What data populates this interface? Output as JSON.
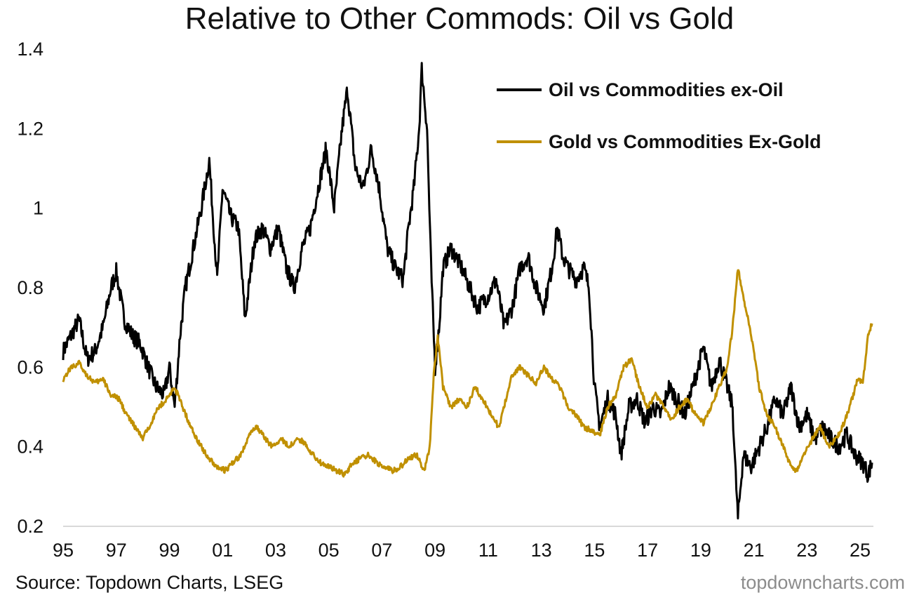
{
  "title": "Relative to Other Commods: Oil vs Gold",
  "source": "Source: Topdown Charts, LSEG",
  "brand": "topdowncharts.com",
  "colors": {
    "oil": "#000000",
    "gold": "#c09000",
    "axis": "#d9d9d9"
  },
  "chart_data": {
    "type": "line",
    "title": "Relative to Other Commods: Oil vs Gold",
    "xlabel": "",
    "ylabel": "",
    "xlim": [
      1995,
      2025.5
    ],
    "ylim": [
      0.2,
      1.4
    ],
    "grid": false,
    "legend": "top-right",
    "x_tick_labels": [
      "95",
      "97",
      "99",
      "01",
      "03",
      "05",
      "07",
      "09",
      "11",
      "13",
      "15",
      "17",
      "19",
      "21",
      "23",
      "25"
    ],
    "y_tick_labels": [
      "0.2",
      "0.4",
      "0.6",
      "0.8",
      "1",
      "1.2",
      "1.4"
    ],
    "series": [
      {
        "name": "Oil vs Commodities ex-Oil",
        "color": "#000000",
        "x": [
          1995.0,
          1995.3,
          1995.6,
          1995.9,
          1996.2,
          1996.5,
          1996.8,
          1997.0,
          1997.3,
          1997.6,
          1997.9,
          1998.2,
          1998.5,
          1998.8,
          1999.0,
          1999.2,
          1999.4,
          1999.6,
          1999.9,
          2000.2,
          2000.5,
          2000.8,
          2001.0,
          2001.3,
          2001.6,
          2001.85,
          2002.2,
          2002.5,
          2002.8,
          2003.1,
          2003.4,
          2003.7,
          2004.0,
          2004.3,
          2004.6,
          2004.9,
          2005.2,
          2005.5,
          2005.7,
          2006.0,
          2006.3,
          2006.6,
          2006.9,
          2007.2,
          2007.5,
          2007.8,
          2008.0,
          2008.2,
          2008.4,
          2008.5,
          2008.7,
          2008.85,
          2009.0,
          2009.15,
          2009.3,
          2009.6,
          2010.0,
          2010.3,
          2010.6,
          2011.0,
          2011.3,
          2011.6,
          2011.9,
          2012.2,
          2012.5,
          2012.8,
          2013.1,
          2013.4,
          2013.6,
          2013.8,
          2014.0,
          2014.3,
          2014.6,
          2014.8,
          2015.0,
          2015.2,
          2015.5,
          2015.8,
          2016.0,
          2016.3,
          2016.6,
          2016.9,
          2017.2,
          2017.5,
          2017.8,
          2018.1,
          2018.4,
          2018.7,
          2018.9,
          2019.1,
          2019.4,
          2019.7,
          2020.0,
          2020.2,
          2020.3,
          2020.4,
          2020.6,
          2020.9,
          2021.2,
          2021.5,
          2021.8,
          2022.1,
          2022.4,
          2022.7,
          2023.0,
          2023.3,
          2023.6,
          2023.9,
          2024.2,
          2024.5,
          2024.8,
          2025.1,
          2025.3,
          2025.45
        ],
        "y": [
          0.64,
          0.68,
          0.72,
          0.62,
          0.64,
          0.7,
          0.8,
          0.84,
          0.72,
          0.68,
          0.66,
          0.6,
          0.55,
          0.53,
          0.6,
          0.5,
          0.68,
          0.8,
          0.9,
          1.0,
          1.12,
          0.82,
          1.05,
          0.98,
          0.95,
          0.72,
          0.92,
          0.95,
          0.9,
          0.95,
          0.85,
          0.8,
          0.9,
          0.95,
          1.05,
          1.15,
          1.0,
          1.2,
          1.3,
          1.1,
          1.05,
          1.15,
          1.05,
          0.9,
          0.85,
          0.82,
          0.95,
          1.05,
          1.2,
          1.35,
          1.2,
          0.85,
          0.6,
          0.7,
          0.85,
          0.9,
          0.85,
          0.8,
          0.75,
          0.78,
          0.82,
          0.7,
          0.75,
          0.85,
          0.88,
          0.8,
          0.75,
          0.85,
          0.95,
          0.88,
          0.85,
          0.82,
          0.85,
          0.8,
          0.55,
          0.45,
          0.52,
          0.48,
          0.38,
          0.5,
          0.52,
          0.46,
          0.5,
          0.48,
          0.55,
          0.52,
          0.48,
          0.55,
          0.6,
          0.65,
          0.55,
          0.62,
          0.55,
          0.5,
          0.35,
          0.22,
          0.38,
          0.35,
          0.4,
          0.45,
          0.52,
          0.48,
          0.55,
          0.45,
          0.48,
          0.42,
          0.45,
          0.42,
          0.4,
          0.43,
          0.38,
          0.36,
          0.33,
          0.36
        ]
      },
      {
        "name": "Gold vs Commodities Ex-Gold",
        "color": "#c09000",
        "x": [
          1995.0,
          1995.3,
          1995.6,
          1995.9,
          1996.2,
          1996.5,
          1996.8,
          1997.1,
          1997.4,
          1997.7,
          1998.0,
          1998.3,
          1998.6,
          1998.9,
          1999.2,
          1999.5,
          1999.8,
          2000.2,
          2000.5,
          2000.8,
          2001.1,
          2001.4,
          2001.7,
          2002.0,
          2002.3,
          2002.6,
          2002.9,
          2003.2,
          2003.5,
          2003.8,
          2004.1,
          2004.4,
          2004.7,
          2005.0,
          2005.3,
          2005.6,
          2005.9,
          2006.2,
          2006.5,
          2006.8,
          2007.1,
          2007.4,
          2007.7,
          2008.0,
          2008.3,
          2008.6,
          2008.8,
          2008.95,
          2009.1,
          2009.3,
          2009.6,
          2009.9,
          2010.2,
          2010.5,
          2010.8,
          2011.1,
          2011.4,
          2011.6,
          2011.9,
          2012.2,
          2012.5,
          2012.8,
          2013.1,
          2013.4,
          2013.7,
          2014.0,
          2014.3,
          2014.6,
          2014.9,
          2015.2,
          2015.5,
          2015.8,
          2016.1,
          2016.4,
          2016.7,
          2017.0,
          2017.3,
          2017.6,
          2017.9,
          2018.2,
          2018.5,
          2018.8,
          2019.1,
          2019.4,
          2019.7,
          2020.0,
          2020.2,
          2020.4,
          2020.6,
          2020.9,
          2021.2,
          2021.5,
          2021.8,
          2022.1,
          2022.4,
          2022.6,
          2022.9,
          2023.2,
          2023.5,
          2023.8,
          2024.1,
          2024.4,
          2024.7,
          2024.9,
          2025.1,
          2025.3,
          2025.45
        ],
        "y": [
          0.57,
          0.6,
          0.61,
          0.58,
          0.56,
          0.57,
          0.53,
          0.52,
          0.48,
          0.45,
          0.42,
          0.46,
          0.5,
          0.52,
          0.55,
          0.5,
          0.45,
          0.4,
          0.37,
          0.35,
          0.34,
          0.36,
          0.38,
          0.43,
          0.45,
          0.42,
          0.4,
          0.42,
          0.4,
          0.42,
          0.41,
          0.38,
          0.36,
          0.35,
          0.34,
          0.33,
          0.36,
          0.37,
          0.38,
          0.36,
          0.35,
          0.34,
          0.35,
          0.37,
          0.38,
          0.34,
          0.4,
          0.58,
          0.68,
          0.55,
          0.5,
          0.52,
          0.5,
          0.55,
          0.52,
          0.48,
          0.45,
          0.5,
          0.58,
          0.6,
          0.58,
          0.56,
          0.6,
          0.57,
          0.55,
          0.5,
          0.48,
          0.45,
          0.44,
          0.43,
          0.5,
          0.53,
          0.6,
          0.62,
          0.55,
          0.5,
          0.53,
          0.5,
          0.47,
          0.5,
          0.52,
          0.48,
          0.46,
          0.5,
          0.55,
          0.6,
          0.7,
          0.85,
          0.78,
          0.68,
          0.55,
          0.48,
          0.45,
          0.4,
          0.35,
          0.34,
          0.38,
          0.42,
          0.45,
          0.4,
          0.42,
          0.46,
          0.52,
          0.57,
          0.56,
          0.68,
          0.71
        ]
      }
    ]
  }
}
